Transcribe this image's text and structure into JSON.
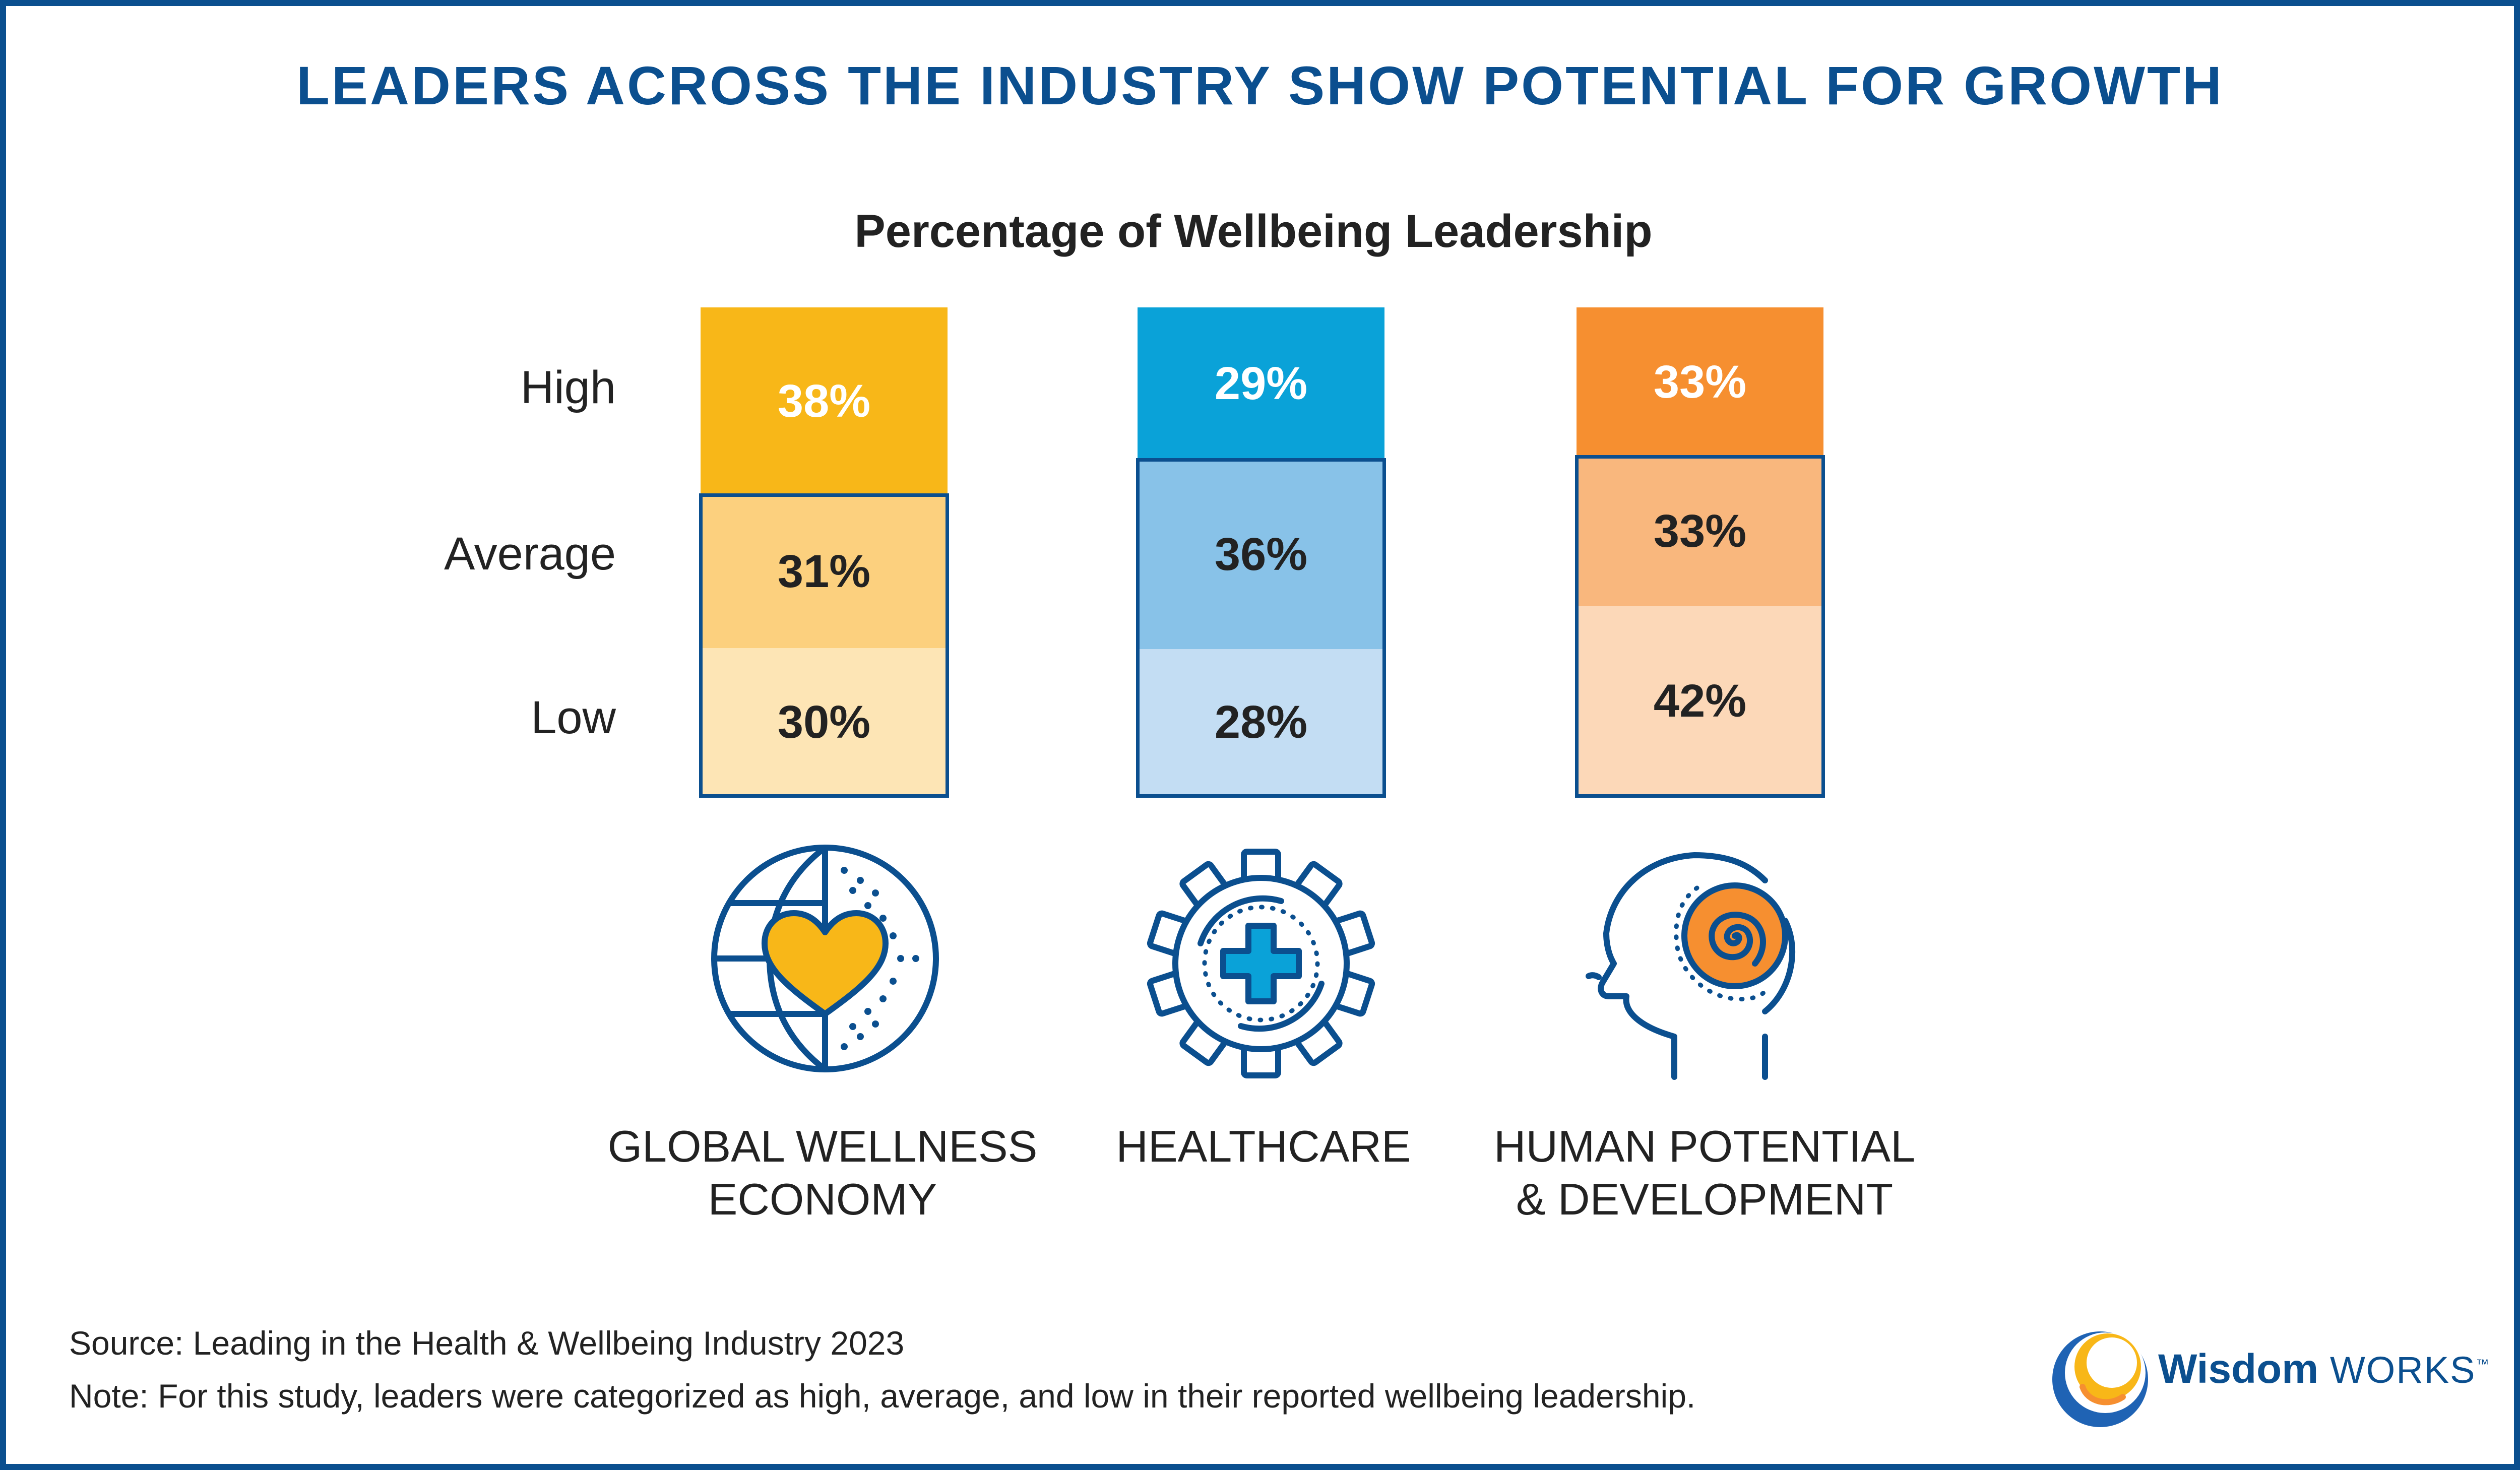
{
  "headline": "LEADERS ACROSS THE INDUSTRY SHOW POTENTIAL FOR GROWTH",
  "chart_data": {
    "type": "bar",
    "stacked": true,
    "title": "Percentage of Wellbeing Leadership",
    "levels": [
      "High",
      "Average",
      "Low"
    ],
    "categories": [
      {
        "lines": [
          "GLOBAL WELLNESS",
          "ECONOMY"
        ],
        "icon": "globe-heart-icon"
      },
      {
        "lines": [
          "HEALTHCARE"
        ],
        "icon": "gear-medical-cross-icon"
      },
      {
        "lines": [
          "HUMAN POTENTIAL",
          "& DEVELOPMENT"
        ],
        "icon": "head-spiral-icon"
      }
    ],
    "series": [
      {
        "name": "High",
        "values": [
          38,
          29,
          33
        ],
        "labels": [
          "38%",
          "29%",
          "33%"
        ],
        "colors": [
          "#f8b718",
          "#0aa2d8",
          "#f68f30"
        ]
      },
      {
        "name": "Average",
        "values": [
          31,
          36,
          33
        ],
        "labels": [
          "31%",
          "36%",
          "33%"
        ],
        "colors": [
          "#fcd07e",
          "#88c2e8",
          "#f9b77d"
        ]
      },
      {
        "name": "Low",
        "values": [
          30,
          28,
          42
        ],
        "labels": [
          "30%",
          "28%",
          "42%"
        ],
        "colors": [
          "#fde5b5",
          "#c3ddf3",
          "#fcd8b8"
        ]
      }
    ],
    "outline_color": "#0b4f8f",
    "label_colors": {
      "High": "#ffffff",
      "Average": "#222222",
      "Low": "#222222"
    }
  },
  "footnotes": {
    "source": "Source: Leading in the Health & Wellbeing Industry 2023",
    "note": "Note: For this study, leaders were categorized as high, average, and low in their reported wellbeing leadership."
  },
  "logo": {
    "word1": "Wisdom",
    "word2": "WORKS",
    "mark": "™"
  },
  "colors": {
    "brand_blue": "#0b4f8f",
    "text": "#222222"
  }
}
